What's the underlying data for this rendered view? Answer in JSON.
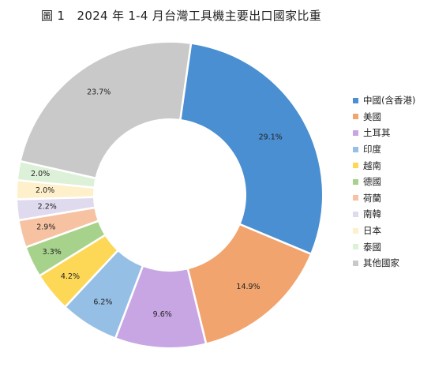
{
  "chart_data": {
    "type": "pie",
    "title": "圖 1　2024 年 1-4 月台灣工具機主要出口國家比重",
    "categories": [
      "中國(含香港)",
      "美國",
      "土耳其",
      "印度",
      "越南",
      "德國",
      "荷蘭",
      "南韓",
      "日本",
      "泰國",
      "其他國家"
    ],
    "values": [
      29.1,
      14.9,
      9.6,
      6.2,
      4.2,
      3.3,
      2.9,
      2.2,
      2.0,
      2.0,
      23.7
    ],
    "labels": [
      "29.1%",
      "14.9%",
      "9.6%",
      "6.2%",
      "4.2%",
      "3.3%",
      "2.9%",
      "2.2%",
      "2.0%",
      "2.0%",
      "23.7%"
    ],
    "colors": [
      "#4a8fd1",
      "#f2a46e",
      "#c8a6e4",
      "#96bfe6",
      "#fdd857",
      "#a7d28c",
      "#f6c2a2",
      "#e0daee",
      "#fff0cc",
      "#ddf0d8",
      "#c9c9c9"
    ],
    "donut": true,
    "legend_position": "right"
  }
}
